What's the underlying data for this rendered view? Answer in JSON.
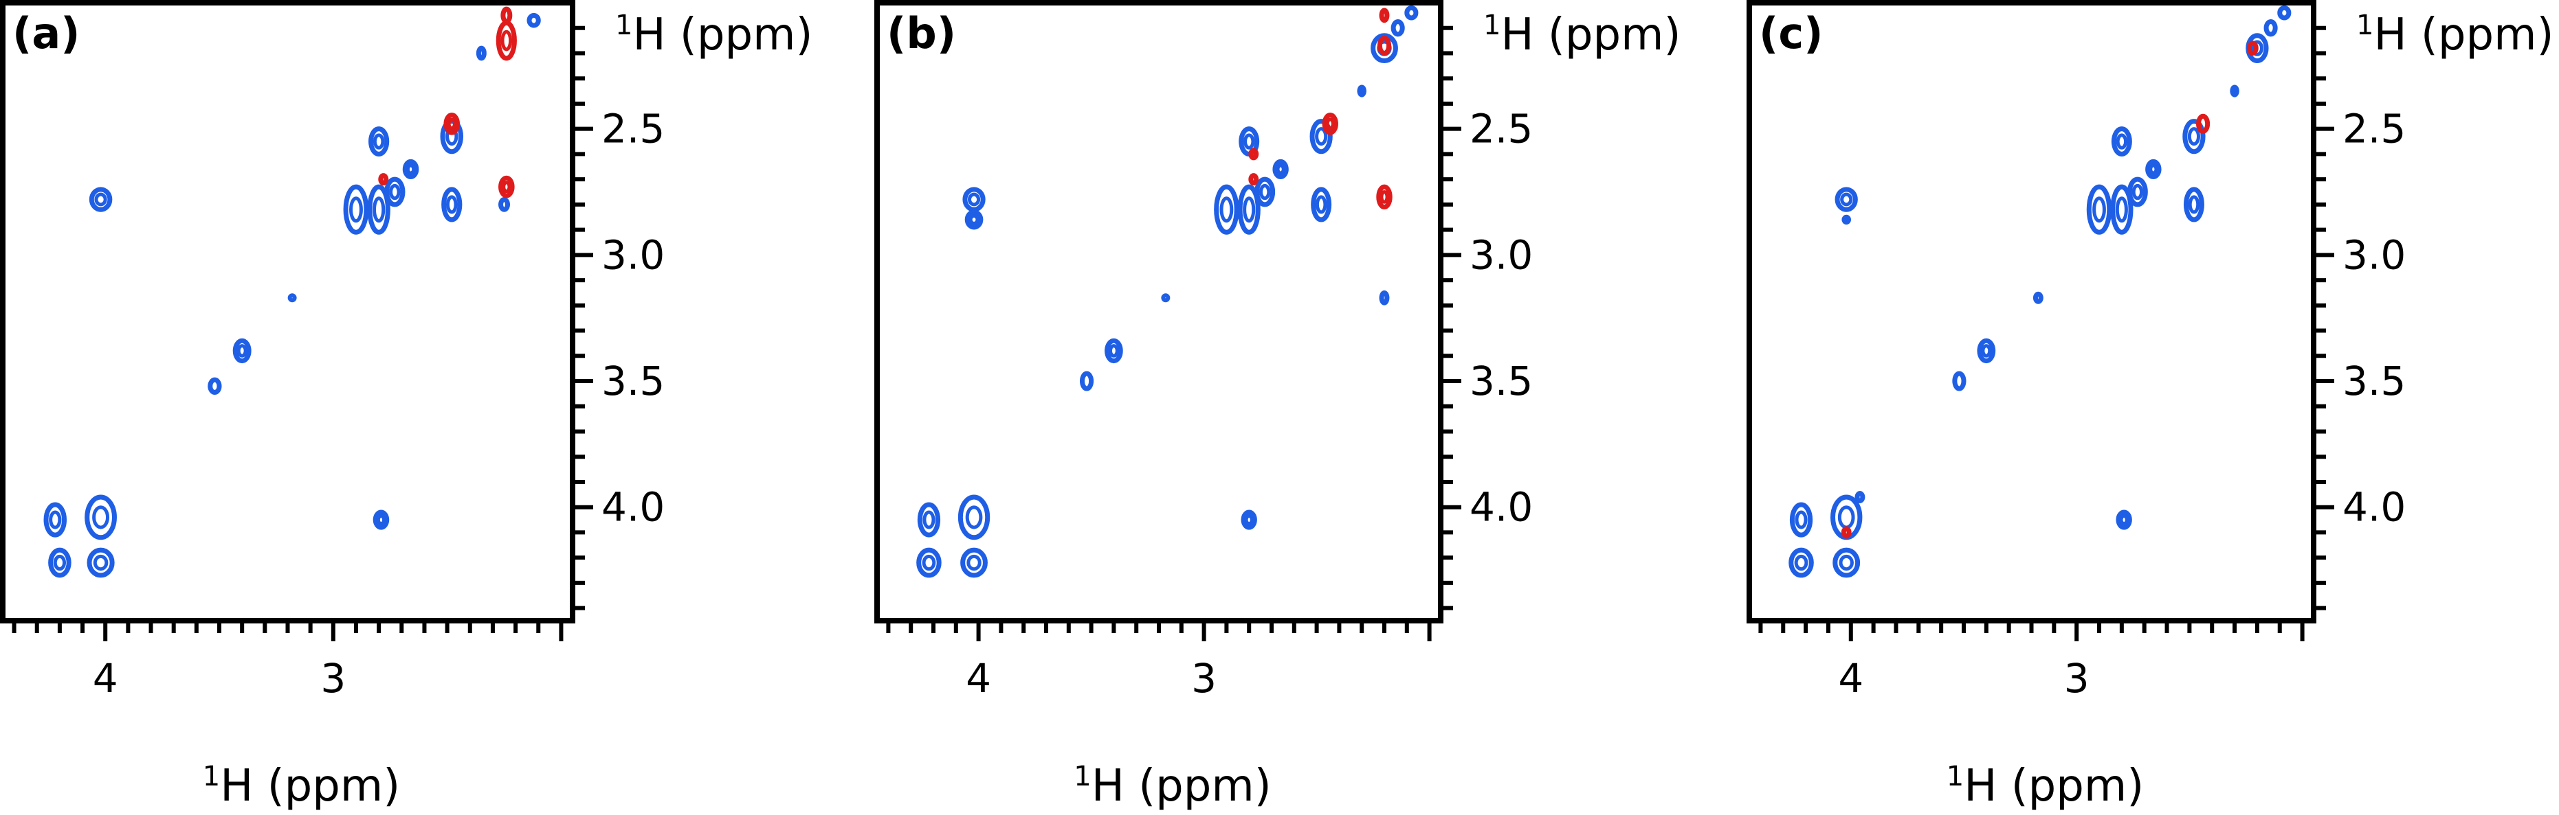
{
  "colors": {
    "positive": "#1f5fe6",
    "negative": "#e01b1b",
    "frame": "#000000"
  },
  "chart_data": [
    {
      "type": "scatter",
      "panel_label": "(a)",
      "xlabel": "H (ppm)",
      "xlabel_sup": "1",
      "ylabel": "H (ppm)",
      "ylabel_sup": "1",
      "xlim": [
        4.45,
        1.95
      ],
      "ylim": [
        2.0,
        4.45
      ],
      "x_ticks": [
        "4",
        "3"
      ],
      "y_ticks": [
        "2.5",
        "3.0",
        "3.5",
        "4.0"
      ],
      "grid": false,
      "series": [
        {
          "sign": "positive",
          "points": [
            {
              "x": 4.22,
              "y": 4.05,
              "w": 0.04,
              "h": 0.06
            },
            {
              "x": 4.2,
              "y": 4.22,
              "w": 0.04,
              "h": 0.05
            },
            {
              "x": 4.02,
              "y": 4.04,
              "w": 0.06,
              "h": 0.08
            },
            {
              "x": 4.02,
              "y": 4.22,
              "w": 0.05,
              "h": 0.05
            },
            {
              "x": 4.02,
              "y": 2.78,
              "w": 0.04,
              "h": 0.04
            },
            {
              "x": 3.52,
              "y": 3.52,
              "w": 0.02,
              "h": 0.025
            },
            {
              "x": 3.4,
              "y": 3.38,
              "w": 0.03,
              "h": 0.04
            },
            {
              "x": 3.18,
              "y": 3.17,
              "w": 0.008,
              "h": 0.008
            },
            {
              "x": 2.9,
              "y": 2.82,
              "w": 0.045,
              "h": 0.09
            },
            {
              "x": 2.8,
              "y": 2.55,
              "w": 0.035,
              "h": 0.05
            },
            {
              "x": 2.8,
              "y": 2.82,
              "w": 0.04,
              "h": 0.09
            },
            {
              "x": 2.73,
              "y": 2.75,
              "w": 0.035,
              "h": 0.05
            },
            {
              "x": 2.66,
              "y": 2.66,
              "w": 0.025,
              "h": 0.03
            },
            {
              "x": 2.48,
              "y": 2.53,
              "w": 0.04,
              "h": 0.06
            },
            {
              "x": 2.48,
              "y": 2.8,
              "w": 0.035,
              "h": 0.06
            },
            {
              "x": 2.25,
              "y": 2.8,
              "w": 0.015,
              "h": 0.02
            },
            {
              "x": 2.79,
              "y": 4.05,
              "w": 0.025,
              "h": 0.03
            },
            {
              "x": 2.35,
              "y": 2.2,
              "w": 0.012,
              "h": 0.02
            },
            {
              "x": 2.12,
              "y": 2.07,
              "w": 0.02,
              "h": 0.02
            }
          ]
        },
        {
          "sign": "negative",
          "points": [
            {
              "x": 2.24,
              "y": 2.05,
              "w": 0.015,
              "h": 0.025
            },
            {
              "x": 2.24,
              "y": 2.15,
              "w": 0.035,
              "h": 0.07
            },
            {
              "x": 2.24,
              "y": 2.73,
              "w": 0.025,
              "h": 0.035
            },
            {
              "x": 2.48,
              "y": 2.48,
              "w": 0.025,
              "h": 0.035
            },
            {
              "x": 2.78,
              "y": 2.7,
              "w": 0.012,
              "h": 0.015
            }
          ]
        }
      ]
    },
    {
      "type": "scatter",
      "panel_label": "(b)",
      "xlabel": "H (ppm)",
      "xlabel_sup": "1",
      "ylabel": "H (ppm)",
      "ylabel_sup": "1",
      "xlim": [
        4.45,
        1.95
      ],
      "ylim": [
        2.0,
        4.45
      ],
      "x_ticks": [
        "4",
        "3"
      ],
      "y_ticks": [
        "2.5",
        "3.0",
        "3.5",
        "4.0"
      ],
      "grid": false,
      "series": [
        {
          "sign": "positive",
          "points": [
            {
              "x": 4.22,
              "y": 4.05,
              "w": 0.04,
              "h": 0.06
            },
            {
              "x": 4.22,
              "y": 4.22,
              "w": 0.045,
              "h": 0.05
            },
            {
              "x": 4.02,
              "y": 4.04,
              "w": 0.06,
              "h": 0.08
            },
            {
              "x": 4.02,
              "y": 4.22,
              "w": 0.05,
              "h": 0.05
            },
            {
              "x": 4.02,
              "y": 2.78,
              "w": 0.04,
              "h": 0.04
            },
            {
              "x": 4.02,
              "y": 2.86,
              "w": 0.03,
              "h": 0.03
            },
            {
              "x": 3.52,
              "y": 3.5,
              "w": 0.02,
              "h": 0.03
            },
            {
              "x": 3.4,
              "y": 3.38,
              "w": 0.03,
              "h": 0.04
            },
            {
              "x": 3.17,
              "y": 3.17,
              "w": 0.008,
              "h": 0.008
            },
            {
              "x": 2.9,
              "y": 2.82,
              "w": 0.045,
              "h": 0.09
            },
            {
              "x": 2.8,
              "y": 2.55,
              "w": 0.035,
              "h": 0.05
            },
            {
              "x": 2.8,
              "y": 2.82,
              "w": 0.04,
              "h": 0.09
            },
            {
              "x": 2.73,
              "y": 2.75,
              "w": 0.035,
              "h": 0.05
            },
            {
              "x": 2.66,
              "y": 2.66,
              "w": 0.025,
              "h": 0.03
            },
            {
              "x": 2.48,
              "y": 2.53,
              "w": 0.04,
              "h": 0.06
            },
            {
              "x": 2.48,
              "y": 2.8,
              "w": 0.035,
              "h": 0.06
            },
            {
              "x": 2.8,
              "y": 4.05,
              "w": 0.025,
              "h": 0.03
            },
            {
              "x": 2.2,
              "y": 3.17,
              "w": 0.012,
              "h": 0.02
            },
            {
              "x": 2.3,
              "y": 2.35,
              "w": 0.01,
              "h": 0.015
            },
            {
              "x": 2.2,
              "y": 2.18,
              "w": 0.05,
              "h": 0.05
            },
            {
              "x": 2.14,
              "y": 2.1,
              "w": 0.02,
              "h": 0.025
            },
            {
              "x": 2.08,
              "y": 2.04,
              "w": 0.02,
              "h": 0.02
            }
          ]
        },
        {
          "sign": "negative",
          "points": [
            {
              "x": 2.2,
              "y": 2.05,
              "w": 0.012,
              "h": 0.02
            },
            {
              "x": 2.2,
              "y": 2.17,
              "w": 0.02,
              "h": 0.03
            },
            {
              "x": 2.2,
              "y": 2.77,
              "w": 0.025,
              "h": 0.04
            },
            {
              "x": 2.44,
              "y": 2.48,
              "w": 0.025,
              "h": 0.035
            },
            {
              "x": 2.78,
              "y": 2.6,
              "w": 0.012,
              "h": 0.015
            },
            {
              "x": 2.78,
              "y": 2.7,
              "w": 0.012,
              "h": 0.015
            }
          ]
        }
      ]
    },
    {
      "type": "scatter",
      "panel_label": "(c)",
      "xlabel": "H (ppm)",
      "xlabel_sup": "1",
      "ylabel": "H (ppm)",
      "ylabel_sup": "1",
      "xlim": [
        4.45,
        1.95
      ],
      "ylim": [
        2.0,
        4.45
      ],
      "x_ticks": [
        "4",
        "3"
      ],
      "y_ticks": [
        "2.5",
        "3.0",
        "3.5",
        "4.0"
      ],
      "grid": false,
      "series": [
        {
          "sign": "positive",
          "points": [
            {
              "x": 4.22,
              "y": 4.05,
              "w": 0.04,
              "h": 0.06
            },
            {
              "x": 4.22,
              "y": 4.22,
              "w": 0.045,
              "h": 0.05
            },
            {
              "x": 4.02,
              "y": 4.04,
              "w": 0.06,
              "h": 0.08
            },
            {
              "x": 4.02,
              "y": 4.22,
              "w": 0.05,
              "h": 0.05
            },
            {
              "x": 4.02,
              "y": 2.78,
              "w": 0.04,
              "h": 0.04
            },
            {
              "x": 4.02,
              "y": 2.86,
              "w": 0.01,
              "h": 0.01
            },
            {
              "x": 3.96,
              "y": 3.96,
              "w": 0.012,
              "h": 0.015
            },
            {
              "x": 3.52,
              "y": 3.5,
              "w": 0.02,
              "h": 0.03
            },
            {
              "x": 3.4,
              "y": 3.38,
              "w": 0.03,
              "h": 0.04
            },
            {
              "x": 3.17,
              "y": 3.17,
              "w": 0.012,
              "h": 0.015
            },
            {
              "x": 2.9,
              "y": 2.82,
              "w": 0.045,
              "h": 0.09
            },
            {
              "x": 2.8,
              "y": 2.55,
              "w": 0.035,
              "h": 0.05
            },
            {
              "x": 2.8,
              "y": 2.82,
              "w": 0.04,
              "h": 0.09
            },
            {
              "x": 2.73,
              "y": 2.75,
              "w": 0.035,
              "h": 0.05
            },
            {
              "x": 2.66,
              "y": 2.66,
              "w": 0.025,
              "h": 0.03
            },
            {
              "x": 2.48,
              "y": 2.53,
              "w": 0.04,
              "h": 0.06
            },
            {
              "x": 2.48,
              "y": 2.8,
              "w": 0.035,
              "h": 0.06
            },
            {
              "x": 2.79,
              "y": 4.05,
              "w": 0.025,
              "h": 0.03
            },
            {
              "x": 2.3,
              "y": 2.35,
              "w": 0.01,
              "h": 0.015
            },
            {
              "x": 2.2,
              "y": 2.18,
              "w": 0.04,
              "h": 0.05
            },
            {
              "x": 2.14,
              "y": 2.1,
              "w": 0.02,
              "h": 0.025
            },
            {
              "x": 2.08,
              "y": 2.04,
              "w": 0.02,
              "h": 0.02
            },
            {
              "x": 2.2,
              "y": 1.98,
              "w": 0.01,
              "h": 0.012
            }
          ]
        },
        {
          "sign": "negative",
          "points": [
            {
              "x": 2.22,
              "y": 2.18,
              "w": 0.015,
              "h": 0.02
            },
            {
              "x": 2.44,
              "y": 2.48,
              "w": 0.02,
              "h": 0.03
            },
            {
              "x": 4.02,
              "y": 4.1,
              "w": 0.012,
              "h": 0.015
            }
          ]
        }
      ]
    }
  ]
}
